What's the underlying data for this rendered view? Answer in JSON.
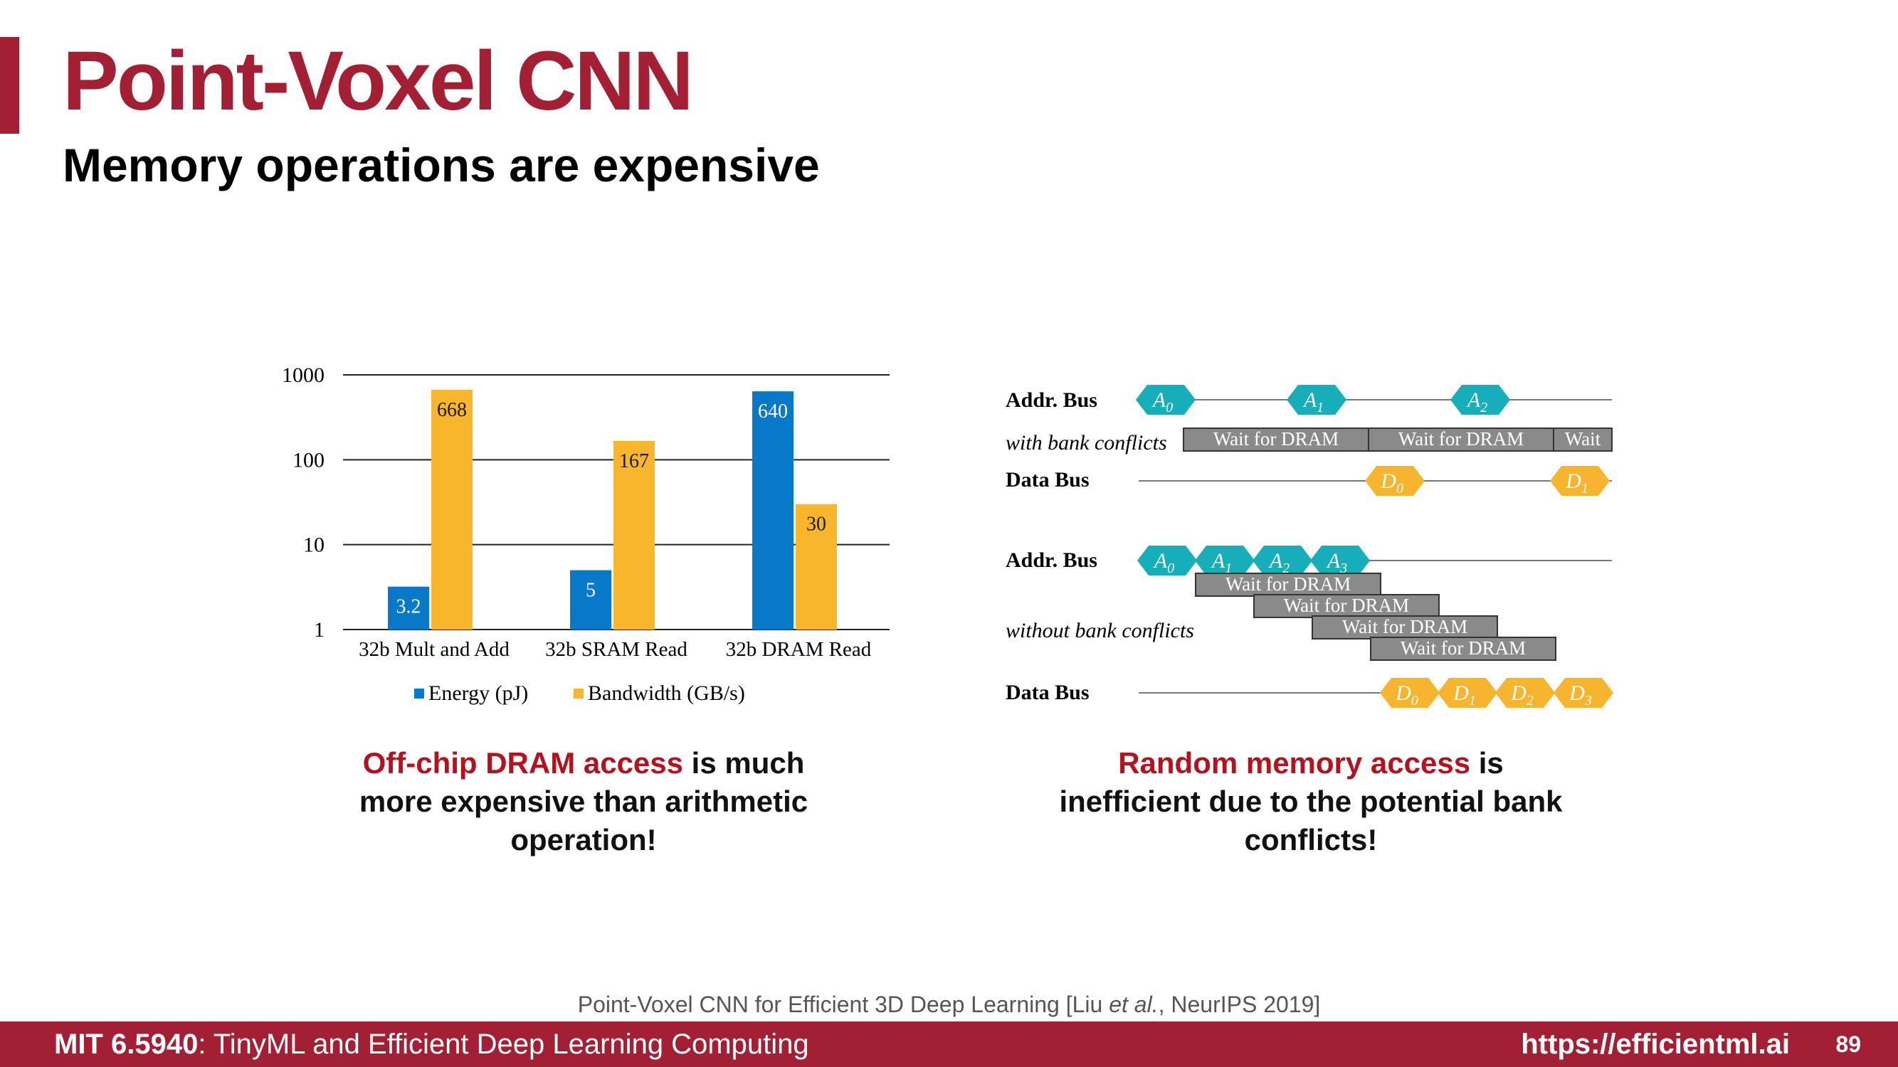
{
  "slide": {
    "title": "Point-Voxel CNN",
    "subtitle": "Memory operations are expensive"
  },
  "chart_data": {
    "type": "bar",
    "scale": "log",
    "ylim": [
      1,
      1000
    ],
    "yticks": [
      {
        "value": 1,
        "label": "1"
      },
      {
        "value": 10,
        "label": "10"
      },
      {
        "value": 100,
        "label": "100"
      },
      {
        "value": 1000,
        "label": "1000"
      }
    ],
    "categories": [
      "32b Mult and Add",
      "32b SRAM Read",
      "32b DRAM Read"
    ],
    "series": [
      {
        "name": "Energy (pJ)",
        "color": "#0878c8",
        "values": [
          3.2,
          5,
          640
        ],
        "labels": [
          "3.2",
          "5",
          "640"
        ]
      },
      {
        "name": "Bandwidth (GB/s)",
        "color": "#f8b62d",
        "values": [
          668,
          167,
          30
        ],
        "labels": [
          "668",
          "167",
          "30"
        ]
      }
    ],
    "legend_position": "bottom",
    "grid": true
  },
  "diagram": {
    "teal": "#16aeb8",
    "amber": "#f6b42f",
    "gray": "#8a8a8a",
    "top": {
      "addr_label": "Addr. Bus",
      "cond_label": "with bank conflicts",
      "data_label": "Data Bus",
      "addr_tokens": [
        {
          "letter": "A",
          "sub": "0"
        },
        {
          "letter": "A",
          "sub": "1"
        },
        {
          "letter": "A",
          "sub": "2"
        }
      ],
      "waits": [
        "Wait for DRAM",
        "Wait for DRAM",
        "Wait"
      ],
      "data_tokens": [
        {
          "letter": "D",
          "sub": "0"
        },
        {
          "letter": "D",
          "sub": "1"
        }
      ]
    },
    "bottom": {
      "addr_label": "Addr. Bus",
      "cond_label": "without bank conflicts",
      "data_label": "Data  Bus",
      "addr_tokens": [
        {
          "letter": "A",
          "sub": "0"
        },
        {
          "letter": "A",
          "sub": "1"
        },
        {
          "letter": "A",
          "sub": "2"
        },
        {
          "letter": "A",
          "sub": "3"
        }
      ],
      "waits": [
        "Wait for DRAM",
        "Wait for DRAM",
        "Wait for DRAM",
        "Wait for DRAM"
      ],
      "data_tokens": [
        {
          "letter": "D",
          "sub": "0"
        },
        {
          "letter": "D",
          "sub": "1"
        },
        {
          "letter": "D",
          "sub": "2"
        },
        {
          "letter": "D",
          "sub": "3"
        }
      ]
    }
  },
  "captions": {
    "left": {
      "highlight": "Off-chip DRAM access",
      "rest1": " is much",
      "line2": "more expensive than arithmetic",
      "line3": "operation!"
    },
    "right": {
      "highlight": "Random memory access",
      "rest1": " is",
      "line2": "inefficient due to the potential bank",
      "line3": "conflicts!"
    }
  },
  "citation": {
    "pre": "Point-Voxel CNN for Efficient 3D Deep Learning [Liu ",
    "italic": "et al.",
    "post": ", NeurIPS 2019]"
  },
  "footer": {
    "course": "MIT 6.5940",
    "course_rest": ": TinyML and Efficient Deep Learning Computing",
    "url": "https://efficientml.ai",
    "page": "89"
  }
}
